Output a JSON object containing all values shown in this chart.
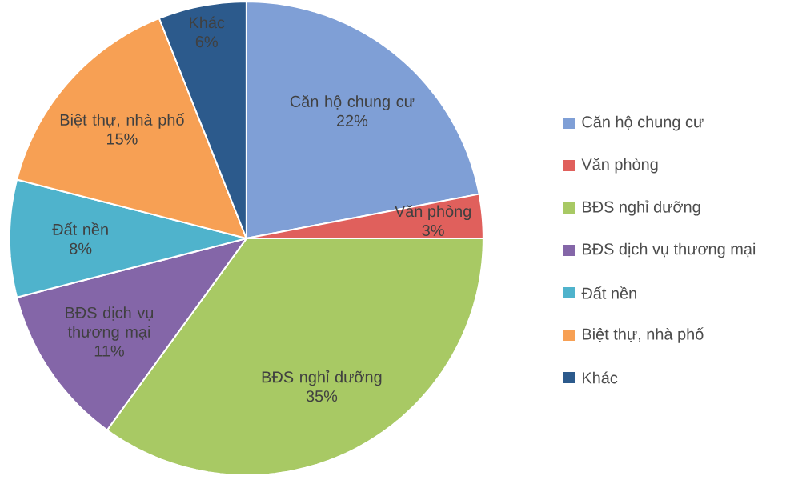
{
  "chart_data": {
    "type": "pie",
    "categories": [
      "Căn hộ chung cư",
      "Văn phòng",
      "BĐS nghỉ dưỡng",
      "BĐS dịch vụ thương mại",
      "Đất nền",
      "Biệt thự, nhà phố",
      "Khác"
    ],
    "values": [
      22,
      3,
      35,
      11,
      8,
      15,
      6
    ],
    "colors": [
      "#7f9fd6",
      "#e0605c",
      "#a8c964",
      "#8466a8",
      "#4fb3cc",
      "#f7a054",
      "#2c5a8c"
    ],
    "value_labels": [
      "22%",
      "3%",
      "35%",
      "11%",
      "8%",
      "15%",
      "6%"
    ],
    "legend": "right"
  }
}
